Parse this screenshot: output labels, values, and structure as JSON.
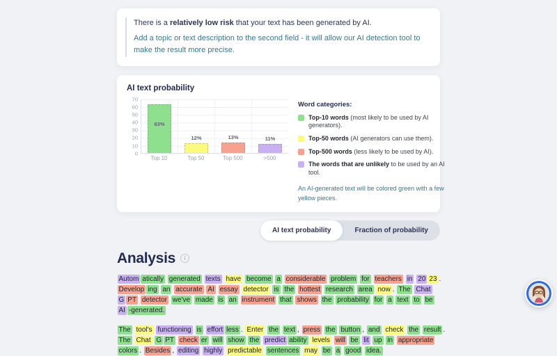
{
  "info_box": {
    "line1_prefix": "There is a ",
    "line1_bold": "relatively low risk",
    "line1_suffix": " that your text has been generated by AI.",
    "line2": "Add a topic or text description to the second field - it will allow our AI detection tool to make the result more precise."
  },
  "chart_card": {
    "title": "AI text probability",
    "legend": {
      "heading": "Word categories:",
      "items": [
        {
          "color": "#8ee08e",
          "bold": "Top-10 words",
          "text": " (most likely to be used by AI generators)."
        },
        {
          "color": "#fbf97e",
          "bold": "Top-50 words",
          "text": " (AI generators can use them)."
        },
        {
          "color": "#f6a28f",
          "bold": "Top-500 words",
          "text": " (less likely to be used by AI)."
        },
        {
          "color": "#c8b0f1",
          "bold": "The words that are unlikely",
          "text": " to be used by an AI tool."
        }
      ],
      "note": "An AI-generated text will be colored green with a few yellow pieces."
    }
  },
  "chart_data": {
    "type": "bar",
    "title": "AI text probability",
    "categories": [
      "Top 10",
      "Top 50",
      "Top 500",
      ">500"
    ],
    "values": [
      63,
      12,
      13,
      11
    ],
    "bar_labels": [
      "63%",
      "12%",
      "13%",
      "11%"
    ],
    "colors": [
      "#8ee08e",
      "#fbf97e",
      "#f6a28f",
      "#c8b0f1"
    ],
    "xlabel": "",
    "ylabel": "",
    "ylim": [
      0,
      70
    ],
    "ytick_step": 10,
    "grid": true,
    "legend_position": "right"
  },
  "tabs": {
    "items": [
      {
        "label": "AI text probability",
        "active": true
      },
      {
        "label": "Fraction of probability",
        "active": false
      }
    ]
  },
  "analysis": {
    "title": "Analysis",
    "paragraphs": [
      [
        [
          "Autom",
          "p"
        ],
        [
          "atically",
          "g",
          1
        ],
        [
          "generated",
          "g"
        ],
        [
          "texts",
          "p"
        ],
        [
          "have",
          "y"
        ],
        [
          "become",
          "g"
        ],
        [
          "a",
          "g"
        ],
        [
          "considerable",
          "r"
        ],
        [
          "problem",
          "g"
        ],
        [
          "for",
          "g"
        ],
        [
          "teachers",
          "r"
        ],
        [
          "in",
          "p"
        ],
        [
          "20",
          "p"
        ],
        [
          "23",
          "y",
          1
        ],
        [
          ".",
          "n",
          1
        ],
        [
          "Develop",
          "r"
        ],
        [
          "ing",
          "g",
          1
        ],
        [
          "an",
          "g"
        ],
        [
          "accurate",
          "r"
        ],
        [
          "AI",
          "r"
        ],
        [
          "essay",
          "r"
        ],
        [
          "detector",
          "y"
        ],
        [
          "is",
          "g"
        ],
        [
          "the",
          "g"
        ],
        [
          "hottest",
          "r"
        ],
        [
          "research",
          "g"
        ],
        [
          "area",
          "g"
        ],
        [
          "now",
          "y"
        ],
        [
          ".",
          "n",
          1
        ],
        [
          "The",
          "g"
        ],
        [
          "Chat",
          "p"
        ],
        [
          "G",
          "p"
        ],
        [
          "PT",
          "r",
          1
        ],
        [
          "detector",
          "r"
        ],
        [
          "we've",
          "g"
        ],
        [
          "made",
          "g"
        ],
        [
          "is",
          "g"
        ],
        [
          "an",
          "g"
        ],
        [
          "instrument",
          "r"
        ],
        [
          "that",
          "g"
        ],
        [
          "shows",
          "r"
        ],
        [
          "the",
          "g"
        ],
        [
          "probability",
          "g"
        ],
        [
          "for",
          "g"
        ],
        [
          "a",
          "g"
        ],
        [
          "text",
          "g"
        ],
        [
          "to",
          "g"
        ],
        [
          "be",
          "g"
        ],
        [
          "AI",
          "p"
        ],
        [
          "-generated.",
          "g",
          1
        ]
      ],
      [
        [
          "The",
          "g"
        ],
        [
          "tool's",
          "y"
        ],
        [
          "functioning",
          "p"
        ],
        [
          "is",
          "g"
        ],
        [
          "effort",
          "p"
        ],
        [
          "less",
          "g",
          1
        ],
        [
          ".",
          "n",
          1
        ],
        [
          "Enter",
          "y"
        ],
        [
          "the",
          "g"
        ],
        [
          "text",
          "g"
        ],
        [
          ",",
          "n",
          1
        ],
        [
          "press",
          "r"
        ],
        [
          "the",
          "g"
        ],
        [
          "button",
          "g"
        ],
        [
          ",",
          "n",
          1
        ],
        [
          "and",
          "g"
        ],
        [
          "check",
          "y"
        ],
        [
          "the",
          "g"
        ],
        [
          "result",
          "g"
        ],
        [
          ".",
          "n",
          1
        ],
        [
          "The",
          "g"
        ],
        [
          "Chat",
          "y"
        ],
        [
          "G",
          "g"
        ],
        [
          "PT",
          "g",
          1
        ],
        [
          "check",
          "r"
        ],
        [
          "er",
          "g",
          1
        ],
        [
          "will",
          "g"
        ],
        [
          "show",
          "g"
        ],
        [
          "the",
          "g"
        ],
        [
          "predict",
          "p"
        ],
        [
          "ability",
          "g",
          1
        ],
        [
          "levels",
          "y"
        ],
        [
          "will",
          "r"
        ],
        [
          "be",
          "g"
        ],
        [
          "lit",
          "p"
        ],
        [
          "up",
          "g"
        ],
        [
          "in",
          "g"
        ],
        [
          "appropriate",
          "r"
        ],
        [
          "colors",
          "g"
        ],
        [
          ".",
          "n",
          1
        ],
        [
          "Besides",
          "r"
        ],
        [
          ",",
          "n",
          1
        ],
        [
          "editing",
          "p"
        ],
        [
          "highly",
          "p"
        ],
        [
          "predictable",
          "y"
        ],
        [
          "sentences",
          "g"
        ],
        [
          "may",
          "y"
        ],
        [
          "be",
          "g"
        ],
        [
          "a",
          "g"
        ],
        [
          "good",
          "g"
        ],
        [
          "idea.",
          "g"
        ]
      ]
    ]
  },
  "highlight_colors": {
    "g": "#8ee08e",
    "y": "#fbf97e",
    "r": "#f6a28f",
    "p": "#c8b0f1",
    "n": "transparent"
  },
  "chat_widget": {
    "icon": "support-avatar"
  }
}
